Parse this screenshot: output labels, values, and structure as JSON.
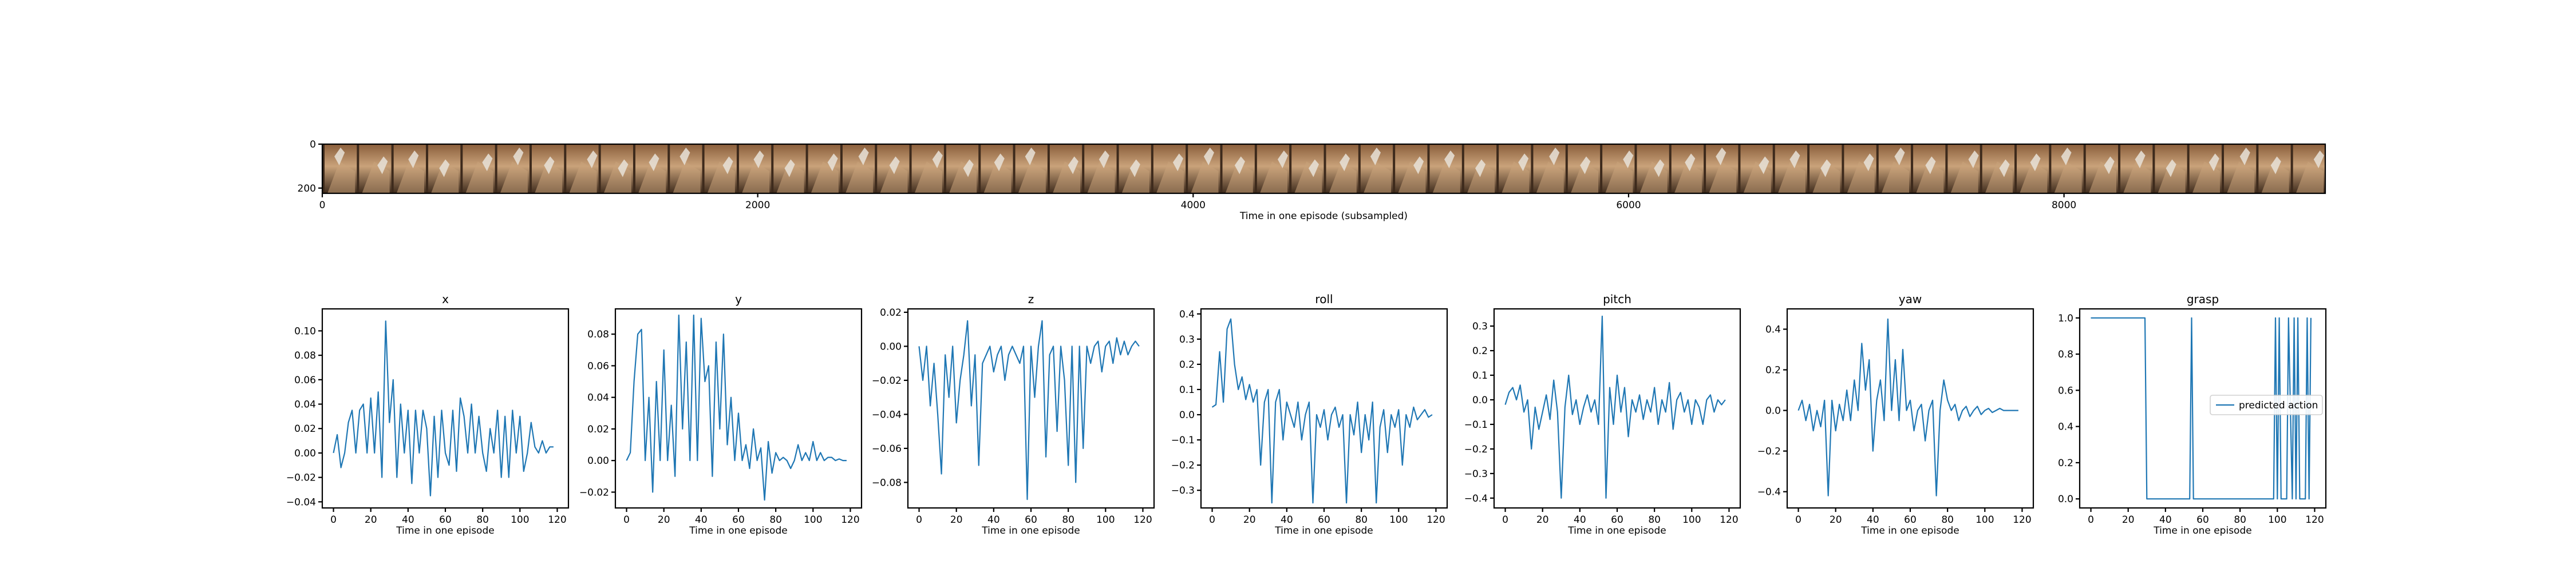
{
  "filmstrip": {
    "xlabel": "Time in one episode (subsampled)",
    "xticks": [
      0,
      2000,
      4000,
      6000,
      8000
    ],
    "yticks": [
      0,
      200
    ],
    "xlim": [
      0,
      9200
    ],
    "ylim": [
      0,
      224
    ],
    "frame_count": 58,
    "colors": {
      "light": "#c9a27a",
      "mid": "#8a5e3b",
      "dark": "#3d2a1c",
      "gripper": "#e8e2d8"
    }
  },
  "chart_data": [
    {
      "type": "line",
      "title": "x",
      "xlabel": "Time in one episode",
      "xticks": [
        0,
        20,
        40,
        60,
        80,
        100,
        120
      ],
      "xlim": [
        -6,
        126
      ],
      "yticks": [
        -0.04,
        -0.02,
        0.0,
        0.02,
        0.04,
        0.06,
        0.08,
        0.1
      ],
      "ylim": [
        -0.045,
        0.118
      ],
      "color": "#1f77b4",
      "x": [
        0,
        2,
        4,
        6,
        8,
        10,
        12,
        14,
        16,
        18,
        20,
        22,
        24,
        26,
        28,
        30,
        32,
        34,
        36,
        38,
        40,
        42,
        44,
        46,
        48,
        50,
        52,
        54,
        56,
        58,
        60,
        62,
        64,
        66,
        68,
        70,
        72,
        74,
        76,
        78,
        80,
        82,
        84,
        86,
        88,
        90,
        92,
        94,
        96,
        98,
        100,
        102,
        104,
        106,
        108,
        110,
        112,
        114,
        116,
        118
      ],
      "y": [
        0.0,
        0.015,
        -0.012,
        0.0,
        0.025,
        0.035,
        0.0,
        0.035,
        0.04,
        0.0,
        0.045,
        0.0,
        0.05,
        -0.02,
        0.108,
        0.025,
        0.06,
        -0.02,
        0.04,
        0.0,
        0.035,
        -0.025,
        0.035,
        0.0,
        0.035,
        0.02,
        -0.035,
        0.03,
        -0.02,
        0.035,
        0.0,
        -0.01,
        0.035,
        -0.015,
        0.045,
        0.03,
        0.0,
        0.04,
        0.0,
        0.03,
        0.0,
        -0.015,
        0.02,
        0.0,
        0.035,
        -0.02,
        0.03,
        -0.02,
        0.035,
        0.0,
        0.03,
        -0.015,
        0.0,
        0.025,
        0.005,
        0.0,
        0.01,
        0.0,
        0.005,
        0.005
      ]
    },
    {
      "type": "line",
      "title": "y",
      "xlabel": "Time in one episode",
      "xticks": [
        0,
        20,
        40,
        60,
        80,
        100,
        120
      ],
      "xlim": [
        -6,
        126
      ],
      "yticks": [
        -0.02,
        0.0,
        0.02,
        0.04,
        0.06,
        0.08
      ],
      "ylim": [
        -0.03,
        0.096
      ],
      "color": "#1f77b4",
      "x": [
        0,
        2,
        4,
        6,
        8,
        10,
        12,
        14,
        16,
        18,
        20,
        22,
        24,
        26,
        28,
        30,
        32,
        34,
        36,
        38,
        40,
        42,
        44,
        46,
        48,
        50,
        52,
        54,
        56,
        58,
        60,
        62,
        64,
        66,
        68,
        70,
        72,
        74,
        76,
        78,
        80,
        82,
        84,
        86,
        88,
        90,
        92,
        94,
        96,
        98,
        100,
        102,
        104,
        106,
        108,
        110,
        112,
        114,
        116,
        118
      ],
      "y": [
        0.0,
        0.005,
        0.05,
        0.08,
        0.083,
        0.0,
        0.04,
        -0.02,
        0.05,
        0.0,
        0.07,
        0.0,
        0.035,
        -0.01,
        0.092,
        0.02,
        0.075,
        0.0,
        0.092,
        0.0,
        0.09,
        0.05,
        0.06,
        -0.01,
        0.075,
        0.02,
        0.08,
        0.01,
        0.04,
        0.0,
        0.03,
        0.0,
        0.01,
        -0.005,
        0.02,
        0.0,
        0.008,
        -0.025,
        0.012,
        -0.008,
        0.005,
        0.0,
        0.002,
        0.0,
        -0.005,
        0.0,
        0.01,
        0.0,
        0.005,
        0.0,
        0.012,
        0.0,
        0.005,
        0.0,
        0.002,
        0.002,
        0.0,
        0.001,
        0.0,
        0.0
      ]
    },
    {
      "type": "line",
      "title": "z",
      "xlabel": "Time in one episode",
      "xticks": [
        0,
        20,
        40,
        60,
        80,
        100,
        120
      ],
      "xlim": [
        -6,
        126
      ],
      "yticks": [
        -0.08,
        -0.06,
        -0.04,
        -0.02,
        0.0,
        0.02
      ],
      "ylim": [
        -0.095,
        0.022
      ],
      "color": "#1f77b4",
      "x": [
        0,
        2,
        4,
        6,
        8,
        10,
        12,
        14,
        16,
        18,
        20,
        22,
        24,
        26,
        28,
        30,
        32,
        34,
        36,
        38,
        40,
        42,
        44,
        46,
        48,
        50,
        52,
        54,
        56,
        58,
        60,
        62,
        64,
        66,
        68,
        70,
        72,
        74,
        76,
        78,
        80,
        82,
        84,
        86,
        88,
        90,
        92,
        94,
        96,
        98,
        100,
        102,
        104,
        106,
        108,
        110,
        112,
        114,
        116,
        118
      ],
      "y": [
        0.0,
        -0.02,
        0.0,
        -0.035,
        -0.01,
        -0.04,
        -0.075,
        -0.005,
        -0.03,
        0.0,
        -0.045,
        -0.02,
        -0.005,
        0.015,
        -0.035,
        -0.005,
        -0.07,
        -0.01,
        -0.005,
        0.0,
        -0.015,
        -0.005,
        0.0,
        -0.02,
        -0.005,
        0.0,
        -0.005,
        -0.01,
        0.0,
        -0.09,
        0.0,
        -0.03,
        0.0,
        0.015,
        -0.065,
        -0.005,
        0.0,
        -0.05,
        0.0,
        -0.02,
        -0.07,
        0.0,
        -0.08,
        0.0,
        -0.06,
        0.0,
        -0.01,
        0.0,
        0.003,
        -0.015,
        0.0,
        0.003,
        -0.01,
        0.005,
        -0.005,
        0.003,
        -0.005,
        0.0,
        0.003,
        0.0
      ]
    },
    {
      "type": "line",
      "title": "roll",
      "xlabel": "Time in one episode",
      "xticks": [
        0,
        20,
        40,
        60,
        80,
        100,
        120
      ],
      "xlim": [
        -6,
        126
      ],
      "yticks": [
        -0.3,
        -0.2,
        -0.1,
        0.0,
        0.1,
        0.2,
        0.3,
        0.4
      ],
      "ylim": [
        -0.37,
        0.42
      ],
      "color": "#1f77b4",
      "x": [
        0,
        2,
        4,
        6,
        8,
        10,
        12,
        14,
        16,
        18,
        20,
        22,
        24,
        26,
        28,
        30,
        32,
        34,
        36,
        38,
        40,
        42,
        44,
        46,
        48,
        50,
        52,
        54,
        56,
        58,
        60,
        62,
        64,
        66,
        68,
        70,
        72,
        74,
        76,
        78,
        80,
        82,
        84,
        86,
        88,
        90,
        92,
        94,
        96,
        98,
        100,
        102,
        104,
        106,
        108,
        110,
        112,
        114,
        116,
        118
      ],
      "y": [
        0.03,
        0.04,
        0.25,
        0.05,
        0.34,
        0.38,
        0.2,
        0.1,
        0.15,
        0.06,
        0.12,
        0.05,
        0.1,
        -0.2,
        0.05,
        0.1,
        -0.35,
        0.05,
        0.1,
        -0.1,
        0.05,
        0.0,
        -0.05,
        0.05,
        -0.1,
        0.0,
        0.05,
        -0.35,
        0.0,
        -0.05,
        0.02,
        -0.1,
        0.0,
        0.03,
        -0.05,
        0.0,
        -0.35,
        0.0,
        -0.08,
        0.05,
        -0.15,
        0.0,
        -0.1,
        0.05,
        -0.35,
        -0.05,
        0.02,
        -0.15,
        0.0,
        -0.05,
        0.02,
        -0.2,
        0.0,
        -0.05,
        0.03,
        -0.02,
        0.0,
        0.02,
        -0.01,
        0.0
      ]
    },
    {
      "type": "line",
      "title": "pitch",
      "xlabel": "Time in one episode",
      "xticks": [
        0,
        20,
        40,
        60,
        80,
        100,
        120
      ],
      "xlim": [
        -6,
        126
      ],
      "yticks": [
        -0.4,
        -0.3,
        -0.2,
        -0.1,
        0.0,
        0.1,
        0.2,
        0.3
      ],
      "ylim": [
        -0.44,
        0.37
      ],
      "color": "#1f77b4",
      "x": [
        0,
        2,
        4,
        6,
        8,
        10,
        12,
        14,
        16,
        18,
        20,
        22,
        24,
        26,
        28,
        30,
        32,
        34,
        36,
        38,
        40,
        42,
        44,
        46,
        48,
        50,
        52,
        54,
        56,
        58,
        60,
        62,
        64,
        66,
        68,
        70,
        72,
        74,
        76,
        78,
        80,
        82,
        84,
        86,
        88,
        90,
        92,
        94,
        96,
        98,
        100,
        102,
        104,
        106,
        108,
        110,
        112,
        114,
        116,
        118
      ],
      "y": [
        -0.02,
        0.03,
        0.05,
        0.0,
        0.06,
        -0.05,
        0.0,
        -0.2,
        -0.03,
        -0.12,
        -0.05,
        0.02,
        -0.08,
        0.08,
        -0.05,
        -0.4,
        -0.03,
        0.1,
        -0.06,
        0.0,
        -0.1,
        -0.03,
        0.02,
        -0.05,
        0.0,
        -0.1,
        0.34,
        -0.4,
        0.05,
        -0.1,
        0.1,
        -0.05,
        0.05,
        -0.15,
        0.0,
        -0.05,
        0.02,
        -0.08,
        0.0,
        -0.05,
        0.05,
        -0.1,
        0.0,
        -0.05,
        0.07,
        -0.12,
        0.0,
        0.03,
        -0.05,
        0.0,
        -0.1,
        0.0,
        -0.03,
        -0.1,
        0.0,
        0.02,
        -0.05,
        0.0,
        -0.02,
        0.0
      ]
    },
    {
      "type": "line",
      "title": "yaw",
      "xlabel": "Time in one episode",
      "xticks": [
        0,
        20,
        40,
        60,
        80,
        100,
        120
      ],
      "xlim": [
        -6,
        126
      ],
      "yticks": [
        -0.4,
        -0.2,
        0.0,
        0.2,
        0.4
      ],
      "ylim": [
        -0.48,
        0.5
      ],
      "color": "#1f77b4",
      "x": [
        0,
        2,
        4,
        6,
        8,
        10,
        12,
        14,
        16,
        18,
        20,
        22,
        24,
        26,
        28,
        30,
        32,
        34,
        36,
        38,
        40,
        42,
        44,
        46,
        48,
        50,
        52,
        54,
        56,
        58,
        60,
        62,
        64,
        66,
        68,
        70,
        72,
        74,
        76,
        78,
        80,
        82,
        84,
        86,
        88,
        90,
        92,
        94,
        96,
        98,
        100,
        102,
        104,
        106,
        108,
        110,
        112,
        114,
        116,
        118
      ],
      "y": [
        0.0,
        0.05,
        -0.05,
        0.03,
        -0.1,
        0.0,
        -0.08,
        0.05,
        -0.42,
        0.05,
        -0.1,
        0.03,
        -0.05,
        0.1,
        -0.05,
        0.15,
        0.0,
        0.33,
        0.1,
        0.25,
        -0.2,
        0.05,
        0.15,
        -0.05,
        0.45,
        0.0,
        0.25,
        -0.05,
        0.3,
        0.0,
        0.05,
        -0.1,
        0.0,
        0.03,
        -0.15,
        0.0,
        0.05,
        -0.42,
        0.0,
        0.15,
        0.05,
        0.0,
        0.03,
        -0.05,
        0.0,
        0.02,
        -0.03,
        0.0,
        0.02,
        -0.02,
        0.0,
        0.01,
        -0.01,
        0.0,
        0.01,
        0.0,
        0.0,
        0.0,
        0.0,
        0.0
      ]
    },
    {
      "type": "line",
      "title": "grasp",
      "xlabel": "Time in one episode",
      "xticks": [
        0,
        20,
        40,
        60,
        80,
        100,
        120
      ],
      "xlim": [
        -6,
        126
      ],
      "yticks": [
        0.0,
        0.2,
        0.4,
        0.6,
        0.8,
        1.0
      ],
      "ylim": [
        -0.05,
        1.05
      ],
      "color": "#1f77b4",
      "legend": {
        "entries": [
          "predicted action"
        ],
        "placement": "center-right"
      },
      "x": [
        0,
        29,
        30,
        53,
        54,
        55,
        98,
        99,
        100,
        101,
        102,
        105,
        106,
        108,
        109,
        110,
        111,
        112,
        115,
        116,
        117,
        118
      ],
      "y": [
        1,
        1,
        0,
        0,
        1,
        0,
        0,
        1,
        0,
        1,
        0,
        0,
        1,
        0,
        1,
        0,
        1,
        0,
        0,
        1,
        0,
        1
      ]
    }
  ]
}
